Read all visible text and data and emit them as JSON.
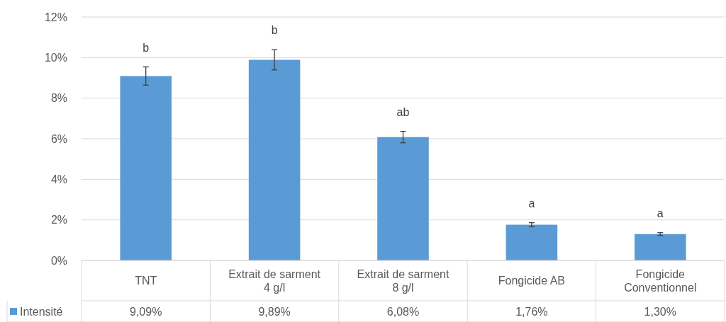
{
  "chart_data": {
    "type": "bar",
    "categories": [
      "TNT",
      "Extrait de sarment\n4 g/l",
      "Extrait de sarment\n8 g/l",
      "Fongicide AB",
      "Fongicide\nConventionnel"
    ],
    "series": [
      {
        "name": "Intensité",
        "color": "#5b9bd5",
        "values": [
          9.09,
          9.89,
          6.08,
          1.76,
          1.3
        ],
        "errors": [
          0.45,
          0.5,
          0.28,
          0.1,
          0.07
        ],
        "value_labels": [
          "9,09%",
          "9,89%",
          "6,08%",
          "1,76%",
          "1,30%"
        ]
      }
    ],
    "ylim": [
      0,
      12
    ],
    "yticks": [
      {
        "value": 0,
        "label": "0%"
      },
      {
        "value": 2,
        "label": "2%"
      },
      {
        "value": 4,
        "label": "4%"
      },
      {
        "value": 6,
        "label": "6%"
      },
      {
        "value": 8,
        "label": "8%"
      },
      {
        "value": 10,
        "label": "10%"
      },
      {
        "value": 12,
        "label": "12%"
      }
    ],
    "grid": "y",
    "legend": "bottom left",
    "annotations": [
      {
        "text": "b",
        "x": "TNT",
        "y": 9.09
      },
      {
        "text": "b",
        "x": "Extrait de sarment\n4 g/l",
        "y": 9.89
      },
      {
        "text": "ab",
        "x": "Extrait de sarment\n8 g/l",
        "y": 6.08
      },
      {
        "text": "a",
        "x": "Fongicide AB",
        "y": 1.76
      },
      {
        "text": "a",
        "x": "Fongicide\nConventionnel",
        "y": 1.3
      }
    ]
  }
}
